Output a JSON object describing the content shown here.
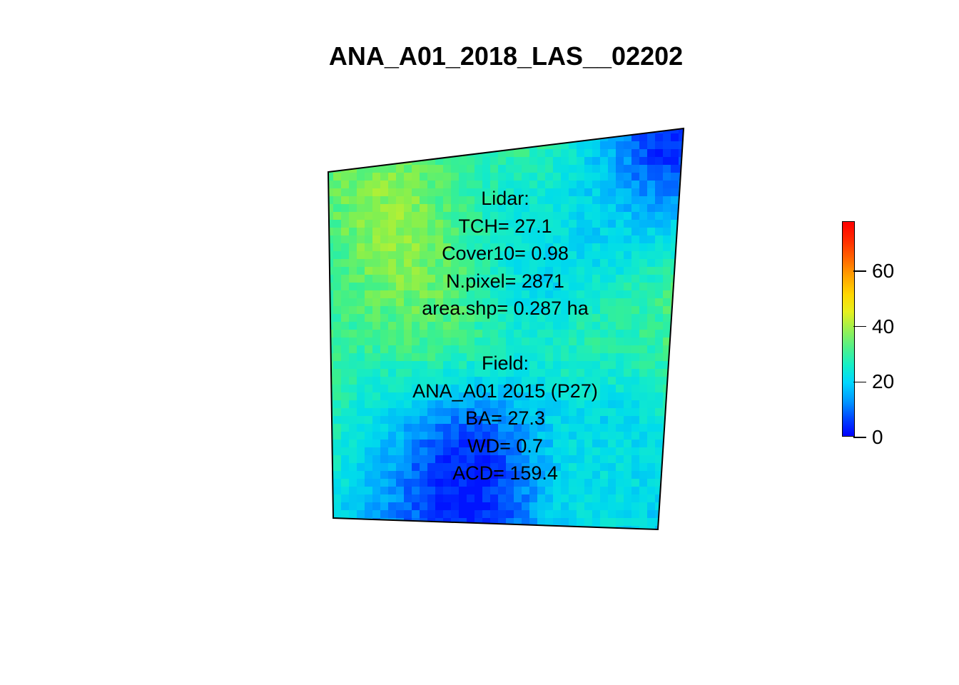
{
  "title": "ANA_A01_2018_LAS__02202",
  "lidar_block": {
    "heading": "Lidar:",
    "tch": "TCH= 27.1",
    "cover": "Cover10= 0.98",
    "npixel": "N.pixel= 2871",
    "area": "area.shp= 0.287 ha"
  },
  "field_block": {
    "heading": "Field:",
    "plot": "ANA_A01 2015 (P27)",
    "ba": "BA= 27.3",
    "wd": "WD= 0.7",
    "acd": "ACD= 159.4"
  },
  "legend": {
    "range": [
      0,
      78
    ],
    "ticks": [
      "0",
      "20",
      "40",
      "60"
    ],
    "tick_values": [
      0,
      20,
      40,
      60
    ],
    "palette": [
      "#0000ff",
      "#00aaff",
      "#00e0e0",
      "#40f090",
      "#a0f050",
      "#f0f020",
      "#ffa000",
      "#ff0000"
    ]
  },
  "raster": {
    "description_values": "canopy height raster, approx 15-45 m"
  }
}
